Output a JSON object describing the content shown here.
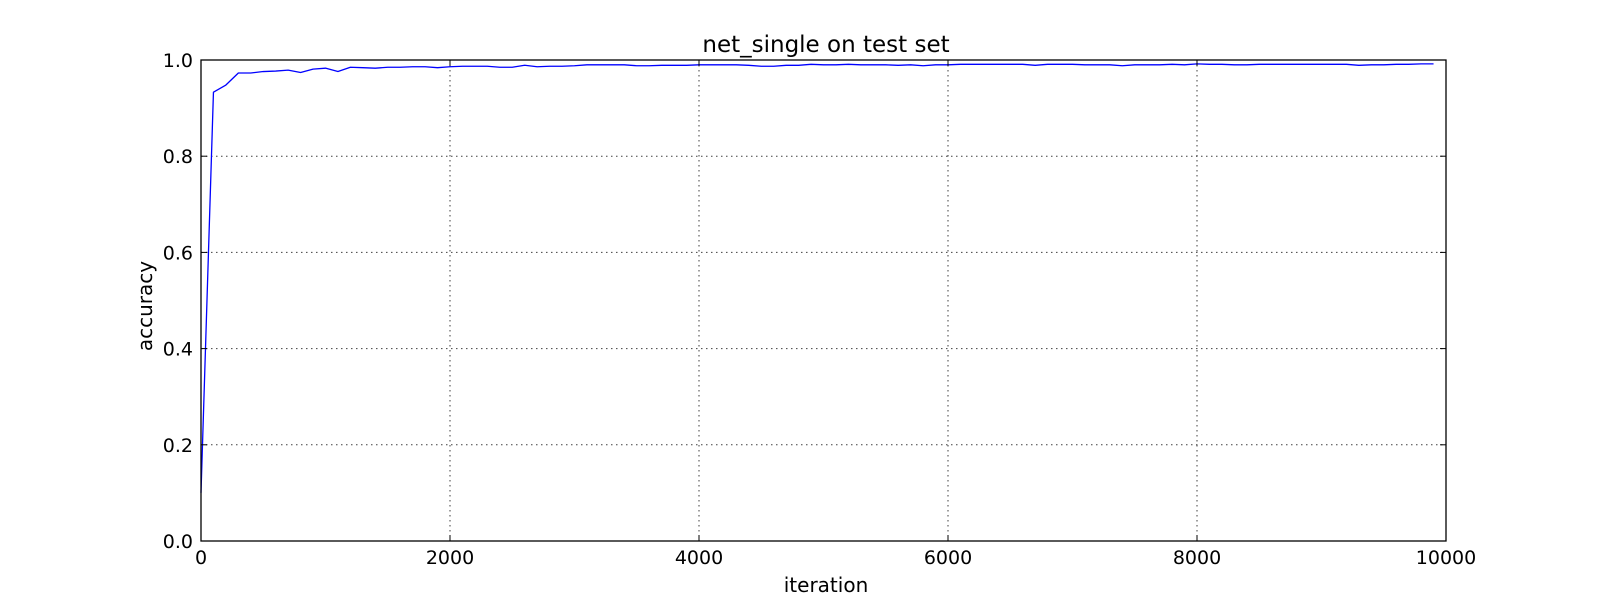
{
  "chart_data": {
    "type": "line",
    "title": "net_single on test set",
    "xlabel": "iteration",
    "ylabel": "accuracy",
    "xlim": [
      0,
      10000
    ],
    "ylim": [
      0.0,
      1.0
    ],
    "xticks": [
      "0",
      "2000",
      "4000",
      "6000",
      "8000",
      "10000"
    ],
    "yticks": [
      "0.0",
      "0.2",
      "0.4",
      "0.6",
      "0.8",
      "1.0"
    ],
    "grid": true,
    "legend": "none",
    "series": [
      {
        "color": "#0000ff",
        "x": [
          0,
          100,
          200,
          300,
          400,
          500,
          600,
          700,
          800,
          900,
          1000,
          1100,
          1200,
          1300,
          1400,
          1500,
          1600,
          1700,
          1800,
          1900,
          2000,
          2100,
          2200,
          2300,
          2400,
          2500,
          2600,
          2700,
          2800,
          2900,
          3000,
          3100,
          3200,
          3300,
          3400,
          3500,
          3600,
          3700,
          3800,
          3900,
          4000,
          4100,
          4200,
          4300,
          4400,
          4500,
          4600,
          4700,
          4800,
          4900,
          5000,
          5100,
          5200,
          5300,
          5400,
          5500,
          5600,
          5700,
          5800,
          5900,
          6000,
          6100,
          6200,
          6300,
          6400,
          6500,
          6600,
          6700,
          6800,
          6900,
          7000,
          7100,
          7200,
          7300,
          7400,
          7500,
          7600,
          7700,
          7800,
          7900,
          8000,
          8100,
          8200,
          8300,
          8400,
          8500,
          8600,
          8700,
          8800,
          8900,
          9000,
          9100,
          9200,
          9300,
          9400,
          9500,
          9600,
          9700,
          9800,
          9900
        ],
        "y": [
          0.1,
          0.933,
          0.948,
          0.973,
          0.973,
          0.976,
          0.977,
          0.979,
          0.974,
          0.981,
          0.983,
          0.976,
          0.985,
          0.984,
          0.983,
          0.985,
          0.985,
          0.986,
          0.986,
          0.984,
          0.986,
          0.987,
          0.987,
          0.987,
          0.985,
          0.985,
          0.989,
          0.986,
          0.987,
          0.987,
          0.988,
          0.99,
          0.99,
          0.99,
          0.99,
          0.988,
          0.988,
          0.989,
          0.989,
          0.989,
          0.99,
          0.99,
          0.99,
          0.99,
          0.989,
          0.987,
          0.987,
          0.989,
          0.989,
          0.991,
          0.99,
          0.99,
          0.991,
          0.99,
          0.99,
          0.99,
          0.989,
          0.99,
          0.988,
          0.99,
          0.99,
          0.991,
          0.991,
          0.991,
          0.991,
          0.991,
          0.991,
          0.989,
          0.991,
          0.991,
          0.991,
          0.99,
          0.99,
          0.99,
          0.988,
          0.99,
          0.99,
          0.99,
          0.991,
          0.99,
          0.992,
          0.991,
          0.991,
          0.99,
          0.99,
          0.991,
          0.991,
          0.991,
          0.991,
          0.991,
          0.991,
          0.991,
          0.991,
          0.989,
          0.99,
          0.99,
          0.991,
          0.991,
          0.992,
          0.992
        ]
      }
    ]
  }
}
